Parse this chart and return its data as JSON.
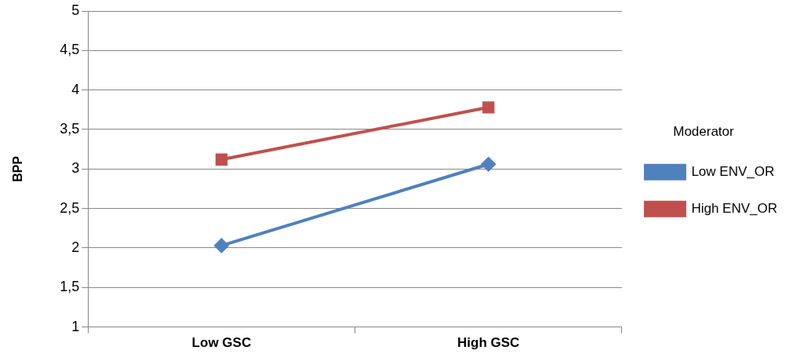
{
  "chart_data": {
    "type": "line",
    "ylabel": "BPP",
    "legend_title": "Moderator",
    "legend": "right",
    "grid": "y",
    "categories": [
      "Low GSC",
      "High GSC"
    ],
    "ylim": [
      1,
      5
    ],
    "yticks": [
      1,
      {
        "value": 1.5,
        "label": "1,5"
      },
      2,
      {
        "value": 2.5,
        "label": "2,5"
      },
      3,
      {
        "value": 3.5,
        "label": "3,5"
      },
      4,
      {
        "value": 4.5,
        "label": "4,5"
      },
      5
    ],
    "series": [
      {
        "name": "Low ENV_OR",
        "color": "#4f81bd",
        "marker": "diamond",
        "values": [
          2.03,
          3.06
        ]
      },
      {
        "name": "High ENV_OR",
        "color": "#c0504d",
        "marker": "square",
        "values": [
          3.12,
          3.78
        ]
      }
    ]
  }
}
